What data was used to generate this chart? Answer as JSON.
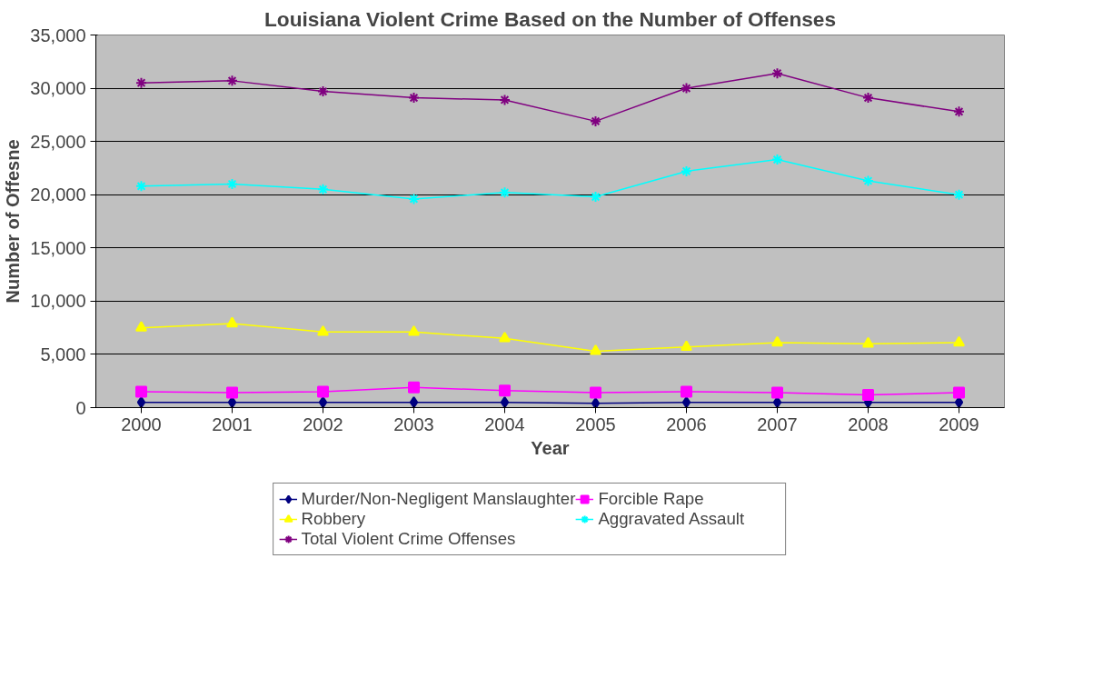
{
  "chart_data": {
    "type": "line",
    "title": "Louisiana Violent Crime Based on the Number of Offenses",
    "xlabel": "Year",
    "ylabel": "Number of Offesne",
    "categories": [
      "2000",
      "2001",
      "2002",
      "2003",
      "2004",
      "2005",
      "2006",
      "2007",
      "2008",
      "2009"
    ],
    "series": [
      {
        "name": "Murder/Non-Negligent Manslaughter",
        "color": "#000080",
        "marker": "diamond",
        "values": [
          500,
          500,
          500,
          500,
          500,
          400,
          500,
          500,
          500,
          500
        ]
      },
      {
        "name": "Forcible Rape",
        "color": "#ff00ff",
        "marker": "square",
        "values": [
          1500,
          1400,
          1500,
          1900,
          1600,
          1400,
          1500,
          1400,
          1200,
          1400
        ]
      },
      {
        "name": "Robbery",
        "color": "#ffff00",
        "marker": "triangle",
        "values": [
          7500,
          7900,
          7100,
          7100,
          6500,
          5300,
          5700,
          6100,
          6000,
          6100
        ]
      },
      {
        "name": "Aggravated Assault",
        "color": "#00ffff",
        "marker": "cross",
        "values": [
          20800,
          21000,
          20500,
          19600,
          20200,
          19800,
          22200,
          23300,
          21300,
          20000
        ]
      },
      {
        "name": "Total Violent Crime Offenses",
        "color": "#800080",
        "marker": "cross",
        "values": [
          30500,
          30700,
          29700,
          29100,
          28900,
          26900,
          30000,
          31400,
          29100,
          27800
        ]
      }
    ],
    "ylim": [
      0,
      35000
    ],
    "yticks": [
      {
        "value": 0,
        "label": "0"
      },
      {
        "value": 5000,
        "label": "5,000"
      },
      {
        "value": 10000,
        "label": "10,000"
      },
      {
        "value": 15000,
        "label": "15,000"
      },
      {
        "value": 20000,
        "label": "20,000"
      },
      {
        "value": 25000,
        "label": "25,000"
      },
      {
        "value": 30000,
        "label": "30,000"
      },
      {
        "value": 35000,
        "label": "35,000"
      }
    ],
    "grid": "y",
    "legend": "bottom",
    "line_style": "solid"
  }
}
